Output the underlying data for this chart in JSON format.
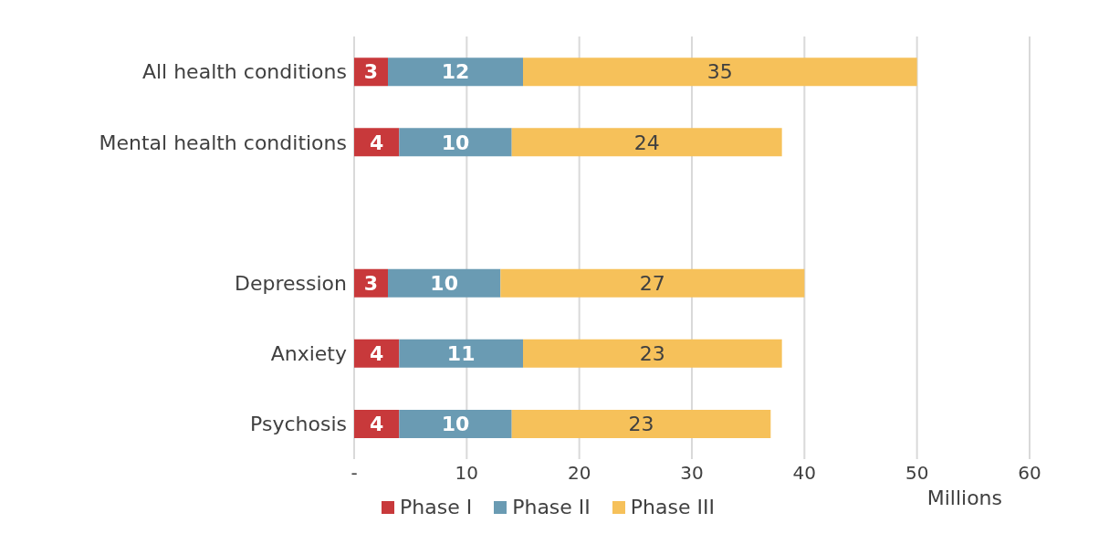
{
  "chart_data": {
    "type": "bar",
    "orientation": "horizontal",
    "stacked": true,
    "xlabel": "Millions",
    "categories": [
      "All health conditions",
      "Mental health conditions",
      null,
      "Depression",
      "Anxiety",
      "Psychosis"
    ],
    "series": [
      {
        "name": "Phase I",
        "color": "#c8393b",
        "values": [
          3,
          4,
          null,
          3,
          4,
          4
        ]
      },
      {
        "name": "Phase II",
        "color": "#6a9bb3",
        "values": [
          12,
          10,
          null,
          10,
          11,
          10
        ]
      },
      {
        "name": "Phase III",
        "color": "#f6c15a",
        "values": [
          35,
          24,
          null,
          27,
          23,
          23
        ]
      }
    ],
    "xlim": [
      0,
      60
    ],
    "xticks": [
      {
        "value": 0,
        "label": "-"
      },
      10,
      20,
      30,
      40,
      50,
      60
    ],
    "grid": "x",
    "legend": "bottom",
    "data_labels": true
  }
}
